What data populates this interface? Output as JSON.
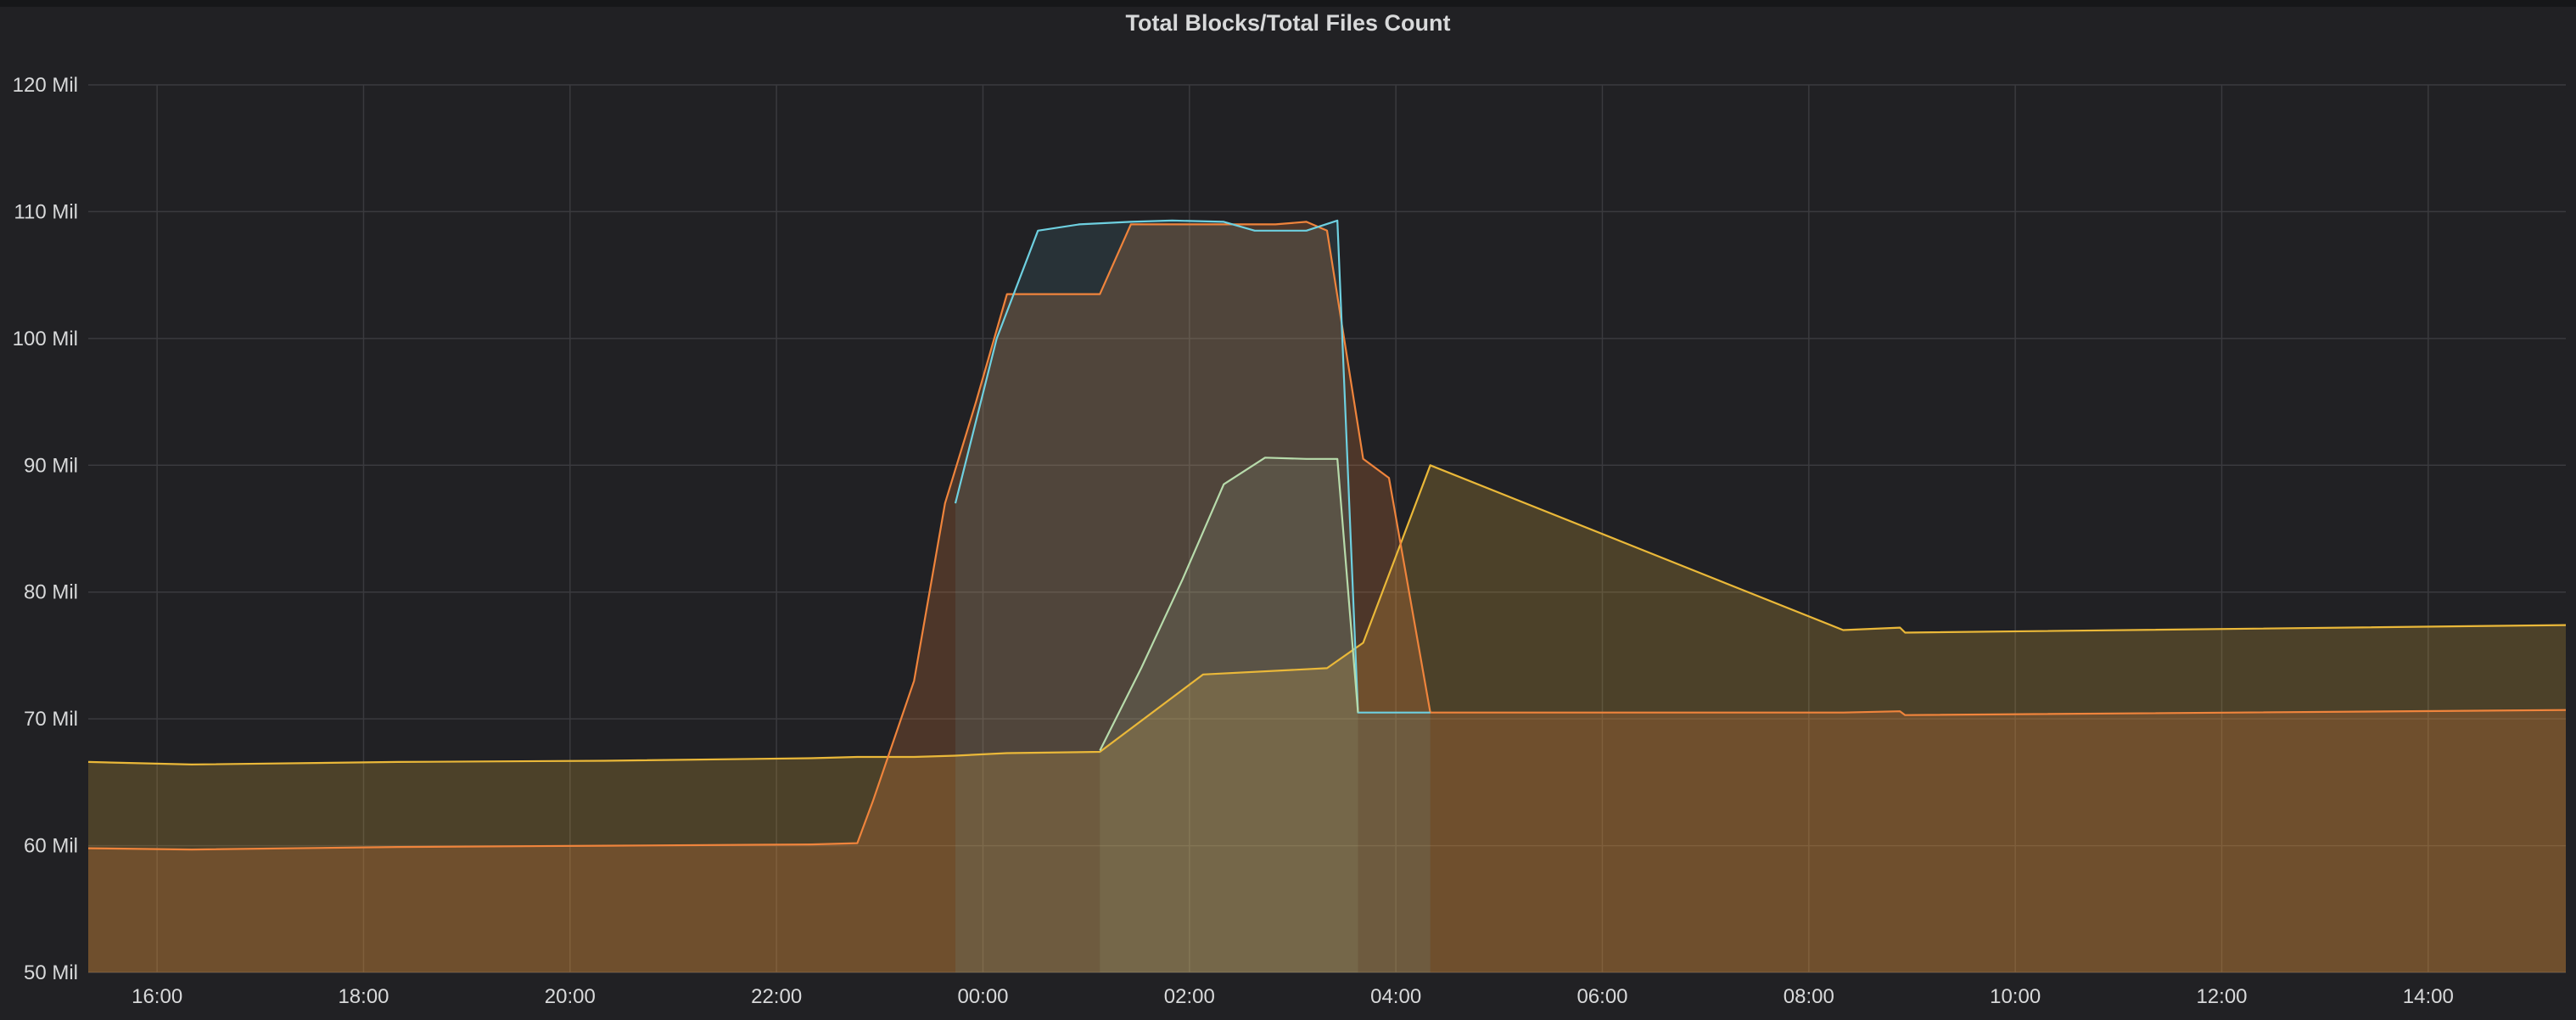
{
  "panel": {
    "title": "Total Blocks/Total Files Count"
  },
  "chart_data": {
    "type": "area",
    "title": "Total Blocks/Total Files Count",
    "x_unit": "hours since 15:20",
    "xlim": [
      0,
      24.0
    ],
    "ylim": [
      50,
      120
    ],
    "y_ticks": [
      50,
      60,
      70,
      80,
      90,
      100,
      110,
      120
    ],
    "y_tick_labels": [
      "50 Mil",
      "60 Mil",
      "70 Mil",
      "80 Mil",
      "90 Mil",
      "100 Mil",
      "110 Mil",
      "120 Mil"
    ],
    "x_ticks": [
      0.667,
      2.667,
      4.667,
      6.667,
      8.667,
      10.667,
      12.667,
      14.667,
      16.667,
      18.667,
      20.667,
      22.667
    ],
    "x_tick_labels": [
      "16:00",
      "18:00",
      "20:00",
      "22:00",
      "00:00",
      "02:00",
      "04:00",
      "06:00",
      "08:00",
      "10:00",
      "12:00",
      "14:00"
    ],
    "grid": true,
    "legend": "none",
    "series": [
      {
        "color": "#eab839",
        "x": [
          0,
          1,
          3,
          5,
          7,
          7.45,
          8,
          8.4,
          8.9,
          9.8,
          10.8,
          12.0,
          12.35,
          13.0,
          17.0,
          17.55,
          17.6,
          24.0
        ],
        "y": [
          66.6,
          66.4,
          66.6,
          66.7,
          66.9,
          67.0,
          67.0,
          67.1,
          67.3,
          67.4,
          73.5,
          74.0,
          76.0,
          90.0,
          77.0,
          77.2,
          76.8,
          77.4
        ]
      },
      {
        "color": "#ef843c",
        "x": [
          0,
          1,
          3,
          5,
          7,
          7.45,
          7.6,
          8.0,
          8.3,
          8.6,
          8.9,
          9.3,
          9.8,
          10.1,
          10.5,
          11.5,
          11.8,
          12.0,
          12.35,
          12.6,
          13.0,
          17.0,
          17.55,
          17.6,
          24.0
        ],
        "y": [
          59.8,
          59.7,
          59.9,
          60.0,
          60.1,
          60.2,
          63.5,
          73.0,
          87.0,
          95.0,
          103.5,
          103.5,
          103.5,
          109.0,
          109.0,
          109.0,
          109.2,
          108.5,
          90.5,
          89.0,
          70.5,
          70.5,
          70.6,
          70.3,
          70.7
        ]
      },
      {
        "color": "#6ed0e0",
        "x": [
          8.4,
          8.8,
          9.2,
          9.6,
          10.1,
          10.5,
          11.0,
          11.3,
          11.8,
          12.1,
          12.3,
          13.0
        ],
        "y": [
          87.0,
          100.0,
          108.5,
          109.0,
          109.2,
          109.3,
          109.2,
          108.5,
          108.5,
          109.3,
          70.5,
          70.5
        ]
      },
      {
        "color": "#b7dbab",
        "x": [
          9.8,
          10.2,
          10.6,
          11.0,
          11.4,
          11.8,
          12.1,
          12.3
        ],
        "y": [
          67.5,
          74.0,
          81.0,
          88.5,
          90.6,
          90.5,
          90.5,
          70.5
        ]
      }
    ]
  }
}
